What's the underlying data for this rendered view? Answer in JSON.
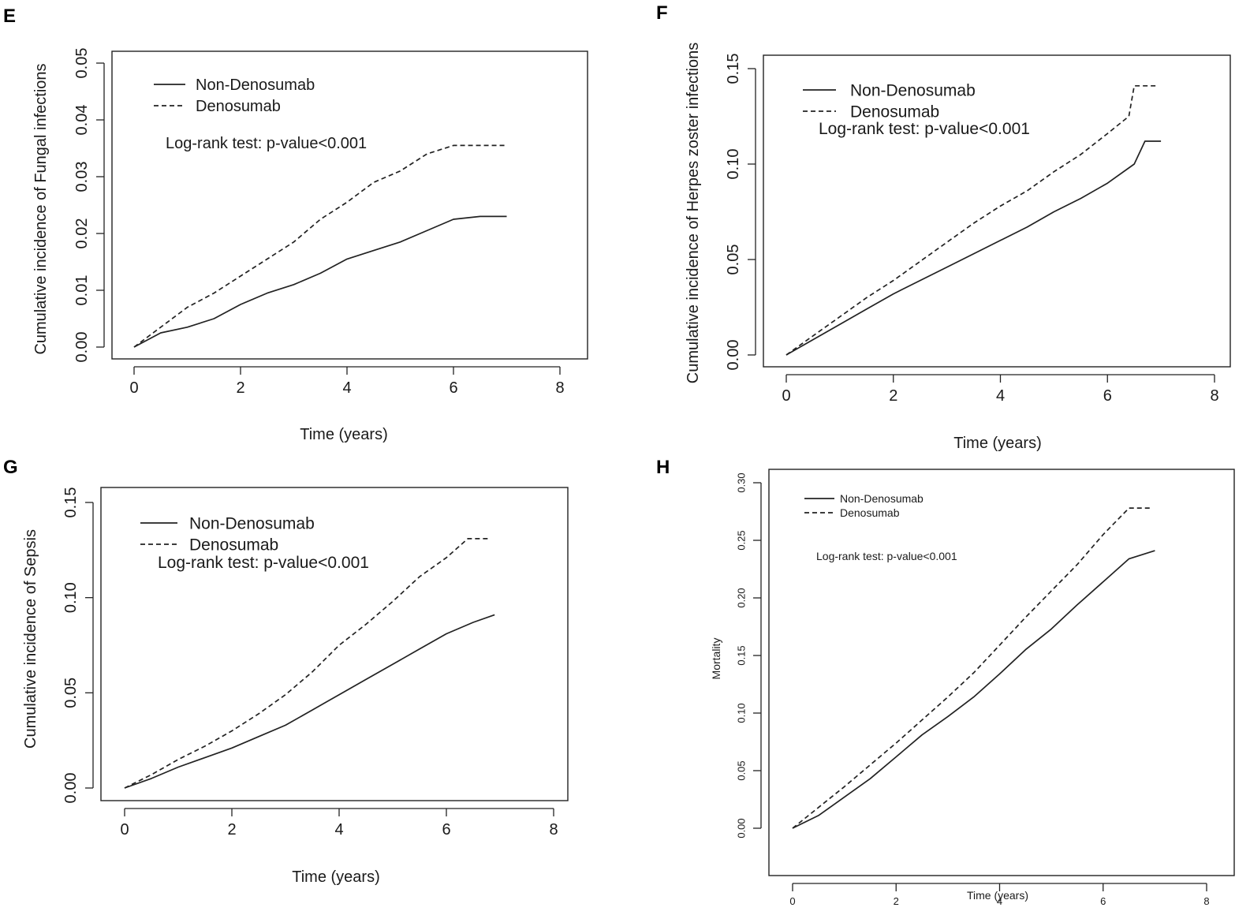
{
  "figure": {
    "panels": [
      "E",
      "F",
      "G",
      "H"
    ]
  },
  "chart_data": [
    {
      "panel": "E",
      "type": "line",
      "title": "",
      "xlabel": "Time (years)",
      "ylabel": "Cumulative incidence of Fungal infections",
      "xlim": [
        0,
        8
      ],
      "ylim": [
        0,
        0.05
      ],
      "xticks": [
        "0",
        "2",
        "4",
        "6",
        "8"
      ],
      "yticks": [
        "0.00",
        "0.01",
        "0.02",
        "0.03",
        "0.04",
        "0.05"
      ],
      "legend": [
        "Non-Denosumab",
        "Denosumab"
      ],
      "annotation": "Log-rank test: p-value<0.001",
      "series": [
        {
          "name": "Non-Denosumab",
          "style": "solid",
          "x": [
            0,
            0.5,
            1,
            1.5,
            2,
            2.5,
            3,
            3.5,
            4,
            4.5,
            5,
            5.5,
            6,
            6.5,
            7
          ],
          "y": [
            0,
            0.0025,
            0.0035,
            0.005,
            0.0075,
            0.0095,
            0.011,
            0.013,
            0.0155,
            0.017,
            0.0185,
            0.0205,
            0.0225,
            0.023,
            0.023
          ]
        },
        {
          "name": "Denosumab",
          "style": "dashed",
          "x": [
            0,
            0.5,
            1,
            1.5,
            2,
            2.5,
            3,
            3.5,
            4,
            4.5,
            5,
            5.5,
            6,
            6.5,
            7
          ],
          "y": [
            0,
            0.0035,
            0.007,
            0.0095,
            0.0125,
            0.0155,
            0.0185,
            0.0225,
            0.0255,
            0.029,
            0.031,
            0.034,
            0.0355,
            0.0355,
            0.0355
          ]
        }
      ]
    },
    {
      "panel": "F",
      "type": "line",
      "title": "",
      "xlabel": "Time (years)",
      "ylabel": "Cumulative incidence of Herpes zoster infections",
      "xlim": [
        0,
        8
      ],
      "ylim": [
        0,
        0.15
      ],
      "xticks": [
        "0",
        "2",
        "4",
        "6",
        "8"
      ],
      "yticks": [
        "0.00",
        "0.05",
        "0.10",
        "0.15"
      ],
      "legend": [
        "Non-Denosumab",
        "Denosumab"
      ],
      "annotation": "Log-rank test: p-value<0.001",
      "series": [
        {
          "name": "Non-Denosumab",
          "style": "solid",
          "x": [
            0,
            0.5,
            1,
            1.5,
            2,
            2.5,
            3,
            3.5,
            4,
            4.5,
            5,
            5.5,
            6,
            6.5,
            6.7,
            7
          ],
          "y": [
            0,
            0.008,
            0.016,
            0.024,
            0.032,
            0.039,
            0.046,
            0.053,
            0.06,
            0.067,
            0.075,
            0.082,
            0.09,
            0.1,
            0.112,
            0.112
          ]
        },
        {
          "name": "Denosumab",
          "style": "dashed",
          "x": [
            0,
            0.5,
            1,
            1.5,
            2,
            2.5,
            3,
            3.5,
            4,
            4.5,
            5,
            5.5,
            6,
            6.4,
            6.5,
            6.9
          ],
          "y": [
            0,
            0.01,
            0.02,
            0.03,
            0.039,
            0.049,
            0.059,
            0.069,
            0.078,
            0.086,
            0.096,
            0.105,
            0.116,
            0.125,
            0.141,
            0.141
          ]
        }
      ]
    },
    {
      "panel": "G",
      "type": "line",
      "title": "",
      "xlabel": "Time (years)",
      "ylabel": "Cumulative incidence of Sepsis",
      "xlim": [
        0,
        8
      ],
      "ylim": [
        0,
        0.15
      ],
      "xticks": [
        "0",
        "2",
        "4",
        "6",
        "8"
      ],
      "yticks": [
        "0.00",
        "0.05",
        "0.10",
        "0.15"
      ],
      "legend": [
        "Non-Denosumab",
        "Denosumab"
      ],
      "annotation": "Log-rank test: p-value<0.001",
      "series": [
        {
          "name": "Non-Denosumab",
          "style": "solid",
          "x": [
            0,
            0.5,
            1,
            1.5,
            2,
            2.5,
            3,
            3.5,
            4,
            4.5,
            5,
            5.5,
            6,
            6.5,
            6.9
          ],
          "y": [
            0,
            0.005,
            0.011,
            0.016,
            0.021,
            0.027,
            0.033,
            0.041,
            0.049,
            0.057,
            0.065,
            0.073,
            0.081,
            0.087,
            0.091
          ]
        },
        {
          "name": "Denosumab",
          "style": "dashed",
          "x": [
            0,
            0.5,
            1,
            1.5,
            2,
            2.5,
            3,
            3.5,
            4,
            4.5,
            5,
            5.5,
            6,
            6.4,
            6.8
          ],
          "y": [
            0,
            0.007,
            0.015,
            0.022,
            0.03,
            0.039,
            0.049,
            0.061,
            0.075,
            0.086,
            0.098,
            0.111,
            0.121,
            0.131,
            0.131
          ]
        }
      ]
    },
    {
      "panel": "H",
      "type": "line",
      "title": "",
      "xlabel": "Time (years)",
      "ylabel": "Mortality",
      "xlim": [
        0,
        8
      ],
      "ylim": [
        0,
        0.3
      ],
      "xticks": [
        "0",
        "2",
        "4",
        "6",
        "8"
      ],
      "yticks": [
        "0.00",
        "0.05",
        "0.10",
        "0.15",
        "0.20",
        "0.25",
        "0.30"
      ],
      "legend": [
        "Non-Denosumab",
        "Denosumab"
      ],
      "annotation": "Log-rank test: p-value<0.001",
      "series": [
        {
          "name": "Non-Denosumab",
          "style": "solid",
          "x": [
            0,
            0.5,
            1,
            1.5,
            2,
            2.5,
            3,
            3.5,
            4,
            4.5,
            5,
            5.5,
            6,
            6.5,
            7
          ],
          "y": [
            0,
            0.011,
            0.027,
            0.043,
            0.062,
            0.081,
            0.097,
            0.114,
            0.134,
            0.155,
            0.173,
            0.194,
            0.214,
            0.234,
            0.241
          ]
        },
        {
          "name": "Denosumab",
          "style": "dashed",
          "x": [
            0,
            0.5,
            1,
            1.5,
            2,
            2.5,
            3,
            3.5,
            4,
            4.5,
            5,
            5.5,
            6,
            6.5,
            6.9
          ],
          "y": [
            0,
            0.018,
            0.036,
            0.055,
            0.074,
            0.094,
            0.114,
            0.135,
            0.159,
            0.183,
            0.206,
            0.229,
            0.255,
            0.278,
            0.278
          ]
        }
      ]
    }
  ]
}
